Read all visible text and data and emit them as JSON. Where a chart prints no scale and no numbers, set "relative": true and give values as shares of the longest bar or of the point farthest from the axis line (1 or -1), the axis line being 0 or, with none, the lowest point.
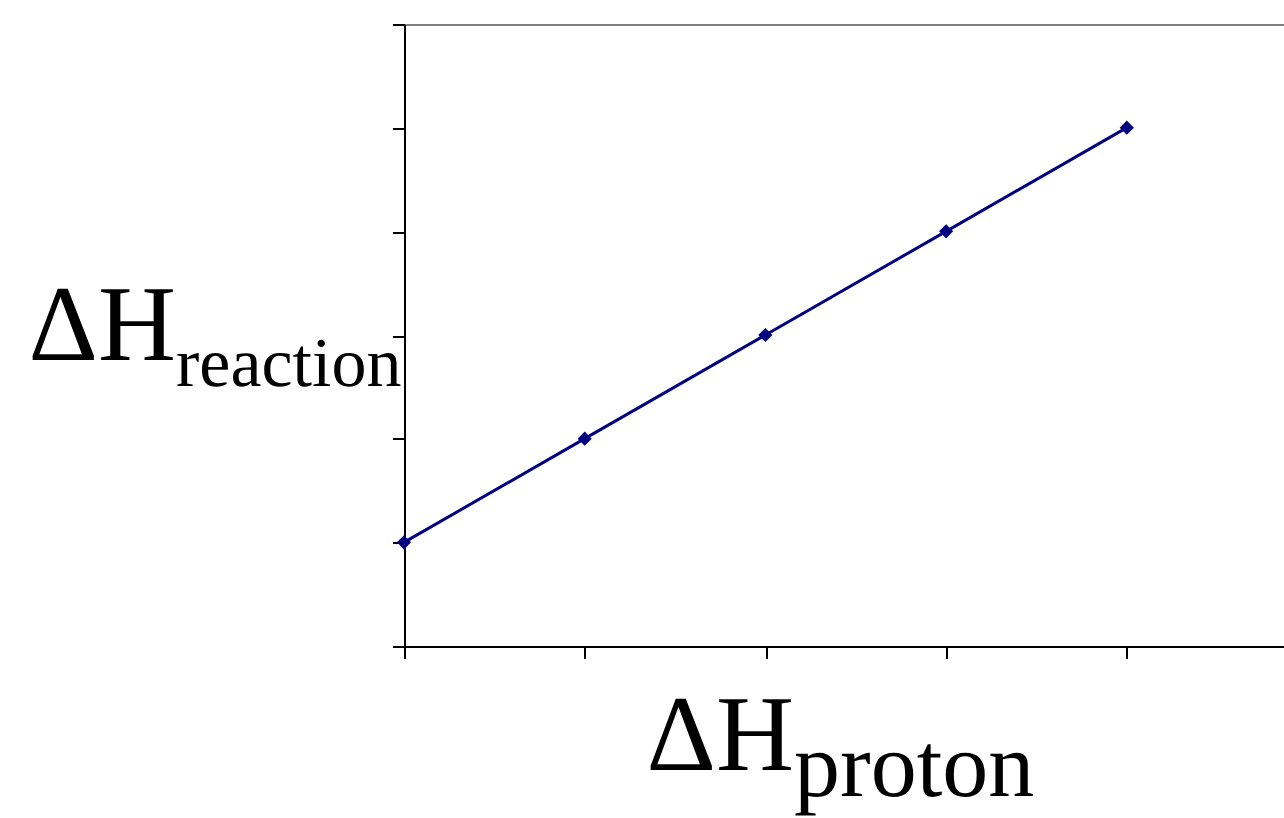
{
  "chart_data": {
    "type": "line",
    "xlabel": "ΔH$_{proton}$",
    "ylabel": "ΔH$_{reaction}$",
    "categories": [
      null,
      null,
      null,
      null,
      null
    ],
    "relative": true,
    "tick_labels": false,
    "marker": "diamond",
    "line_style": "solid",
    "series": [
      {
        "color": "#000080",
        "values": [
          0.2,
          0.4,
          0.6,
          0.8,
          1.0
        ]
      }
    ]
  }
}
